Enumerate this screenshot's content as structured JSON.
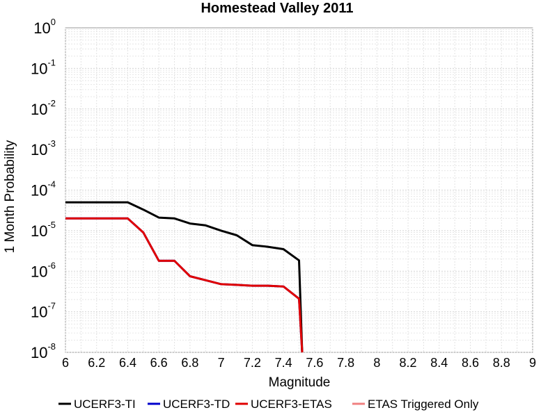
{
  "chart_data": {
    "type": "line",
    "title": "Homestead Valley 2011",
    "xlabel": "Magnitude",
    "ylabel": "1 Month Probability",
    "xlim": [
      6,
      9
    ],
    "ylim": [
      1e-08,
      1
    ],
    "yscale": "log",
    "grid": true,
    "legend_position": "bottom",
    "x_ticks": [
      "6",
      "6.2",
      "6.4",
      "6.6",
      "6.8",
      "7",
      "7.2",
      "7.4",
      "7.6",
      "7.8",
      "8",
      "8.2",
      "8.4",
      "8.6",
      "8.8",
      "9"
    ],
    "y_ticks": [
      {
        "base": "10",
        "exp": "0"
      },
      {
        "base": "10",
        "exp": "-1"
      },
      {
        "base": "10",
        "exp": "-2"
      },
      {
        "base": "10",
        "exp": "-3"
      },
      {
        "base": "10",
        "exp": "-4"
      },
      {
        "base": "10",
        "exp": "-5"
      },
      {
        "base": "10",
        "exp": "-6"
      },
      {
        "base": "10",
        "exp": "-7"
      },
      {
        "base": "10",
        "exp": "-8"
      }
    ],
    "series": [
      {
        "name": "UCERF3-TI",
        "color": "#000000",
        "x": [
          6.0,
          6.1,
          6.2,
          6.3,
          6.4,
          6.5,
          6.6,
          6.7,
          6.8,
          6.9,
          7.0,
          7.1,
          7.2,
          7.3,
          7.4,
          7.5,
          7.52
        ],
        "y": [
          5e-05,
          5e-05,
          5e-05,
          5e-05,
          5e-05,
          3.3e-05,
          2.1e-05,
          2e-05,
          1.5e-05,
          1.35e-05,
          1e-05,
          7.7e-06,
          4.4e-06,
          4e-06,
          3.5e-06,
          1.85e-06,
          1e-08
        ]
      },
      {
        "name": "UCERF3-TD",
        "color": "#0000cc",
        "x": [
          6.0,
          6.1,
          6.2,
          6.3,
          6.4,
          6.5,
          6.6,
          6.7,
          6.8,
          6.9,
          7.0,
          7.1,
          7.2,
          7.3,
          7.4,
          7.5,
          7.52
        ],
        "y": [
          2e-05,
          2e-05,
          2e-05,
          2e-05,
          2e-05,
          9e-06,
          1.8e-06,
          1.8e-06,
          7.5e-07,
          6e-07,
          4.8e-07,
          4.6e-07,
          4.4e-07,
          4.4e-07,
          4.2e-07,
          2.1e-07,
          1e-08
        ]
      },
      {
        "name": "UCERF3-ETAS",
        "color": "#e00000",
        "x": [
          6.0,
          6.1,
          6.2,
          6.3,
          6.4,
          6.5,
          6.6,
          6.7,
          6.8,
          6.9,
          7.0,
          7.1,
          7.2,
          7.3,
          7.4,
          7.5,
          7.52
        ],
        "y": [
          2e-05,
          2e-05,
          2e-05,
          2e-05,
          2e-05,
          9e-06,
          1.8e-06,
          1.8e-06,
          7.5e-07,
          6e-07,
          4.8e-07,
          4.6e-07,
          4.4e-07,
          4.4e-07,
          4.2e-07,
          2.1e-07,
          1e-08
        ]
      },
      {
        "name": "ETAS Triggered Only",
        "color": "#f08080",
        "x": [],
        "y": []
      }
    ]
  }
}
